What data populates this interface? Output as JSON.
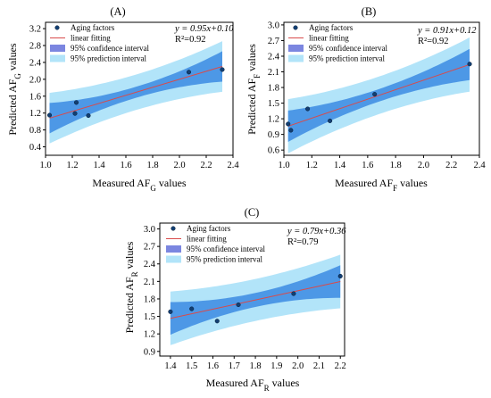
{
  "chart_data": [
    {
      "type": "scatter",
      "panel_label": "(A)",
      "xlabel": "Measured AF_G values",
      "ylabel": "Predicted AF_G values",
      "xlim": [
        1.0,
        2.4
      ],
      "ylim": [
        0.2,
        3.35
      ],
      "xticks": [
        1.0,
        1.2,
        1.4,
        1.6,
        1.8,
        2.0,
        2.2,
        2.4
      ],
      "yticks": [
        0.4,
        0.8,
        1.2,
        1.6,
        2.0,
        2.4,
        2.8,
        3.2
      ],
      "equation": "y = 0.95x+0.10",
      "r2": "R²=0.92",
      "fit": {
        "slope": 0.95,
        "intercept": 0.1,
        "x_range": [
          1.03,
          2.32
        ]
      },
      "confidence_band_halfwidth": {
        "at_ends": 0.36,
        "at_center": 0.13
      },
      "prediction_band_halfwidth": {
        "at_ends": 0.6,
        "at_center": 0.42
      },
      "legend": [
        "Aging factors",
        "linear fitting",
        "95% confidence interval",
        "95% prediction interval"
      ],
      "points": [
        {
          "x": 1.03,
          "y": 1.15
        },
        {
          "x": 1.22,
          "y": 1.19
        },
        {
          "x": 1.23,
          "y": 1.45
        },
        {
          "x": 1.32,
          "y": 1.14
        },
        {
          "x": 2.07,
          "y": 2.17
        },
        {
          "x": 2.32,
          "y": 2.23
        }
      ]
    },
    {
      "type": "scatter",
      "panel_label": "(B)",
      "xlabel": "Measured AF_F values",
      "ylabel": "Predicted AF_F values",
      "xlim": [
        1.0,
        2.4
      ],
      "ylim": [
        0.5,
        3.05
      ],
      "xticks": [
        1.0,
        1.2,
        1.4,
        1.6,
        1.8,
        2.0,
        2.2,
        2.4
      ],
      "yticks": [
        0.6,
        0.9,
        1.2,
        1.5,
        1.8,
        2.1,
        2.4,
        2.7,
        3.0
      ],
      "equation": "y = 0.91x+0.12",
      "r2": "R²=0.92",
      "fit": {
        "slope": 0.91,
        "intercept": 0.12,
        "x_range": [
          1.03,
          2.33
        ]
      },
      "confidence_band_halfwidth": {
        "at_ends": 0.3,
        "at_center": 0.12
      },
      "prediction_band_halfwidth": {
        "at_ends": 0.52,
        "at_center": 0.36
      },
      "legend": [
        "Aging factors",
        "linear fitting",
        "95% confidence interval",
        "95% prediction interval"
      ],
      "points": [
        {
          "x": 1.03,
          "y": 1.1
        },
        {
          "x": 1.05,
          "y": 0.98
        },
        {
          "x": 1.17,
          "y": 1.39
        },
        {
          "x": 1.33,
          "y": 1.16
        },
        {
          "x": 1.65,
          "y": 1.67
        },
        {
          "x": 2.33,
          "y": 2.25
        }
      ]
    },
    {
      "type": "scatter",
      "panel_label": "(C)",
      "xlabel": "Measured AF_R values",
      "ylabel": "Predicted AF_R values",
      "xlim": [
        1.35,
        2.22
      ],
      "ylim": [
        0.82,
        3.1
      ],
      "xticks": [
        1.4,
        1.5,
        1.6,
        1.7,
        1.8,
        1.9,
        2.0,
        2.1,
        2.2
      ],
      "yticks": [
        0.9,
        1.2,
        1.5,
        1.8,
        2.1,
        2.4,
        2.7,
        3.0
      ],
      "equation": "y = 0.79x+0.36",
      "r2": "R²=0.79",
      "fit": {
        "slope": 0.79,
        "intercept": 0.36,
        "x_range": [
          1.4,
          2.2
        ]
      },
      "confidence_band_halfwidth": {
        "at_ends": 0.28,
        "at_center": 0.12
      },
      "prediction_band_halfwidth": {
        "at_ends": 0.46,
        "at_center": 0.36
      },
      "legend": [
        "Aging factors",
        "linear fitting",
        "95% confidence interval",
        "95% prediction interval"
      ],
      "points": [
        {
          "x": 1.4,
          "y": 1.58
        },
        {
          "x": 1.5,
          "y": 1.63
        },
        {
          "x": 1.62,
          "y": 1.42
        },
        {
          "x": 1.72,
          "y": 1.7
        },
        {
          "x": 1.98,
          "y": 1.89
        },
        {
          "x": 2.2,
          "y": 2.19
        }
      ]
    }
  ],
  "colors": {
    "prediction_band": "#b2e4f9",
    "confidence_band": "#4d98e6",
    "fit_line": "#d94a4a",
    "point_fill": "#123f73"
  }
}
